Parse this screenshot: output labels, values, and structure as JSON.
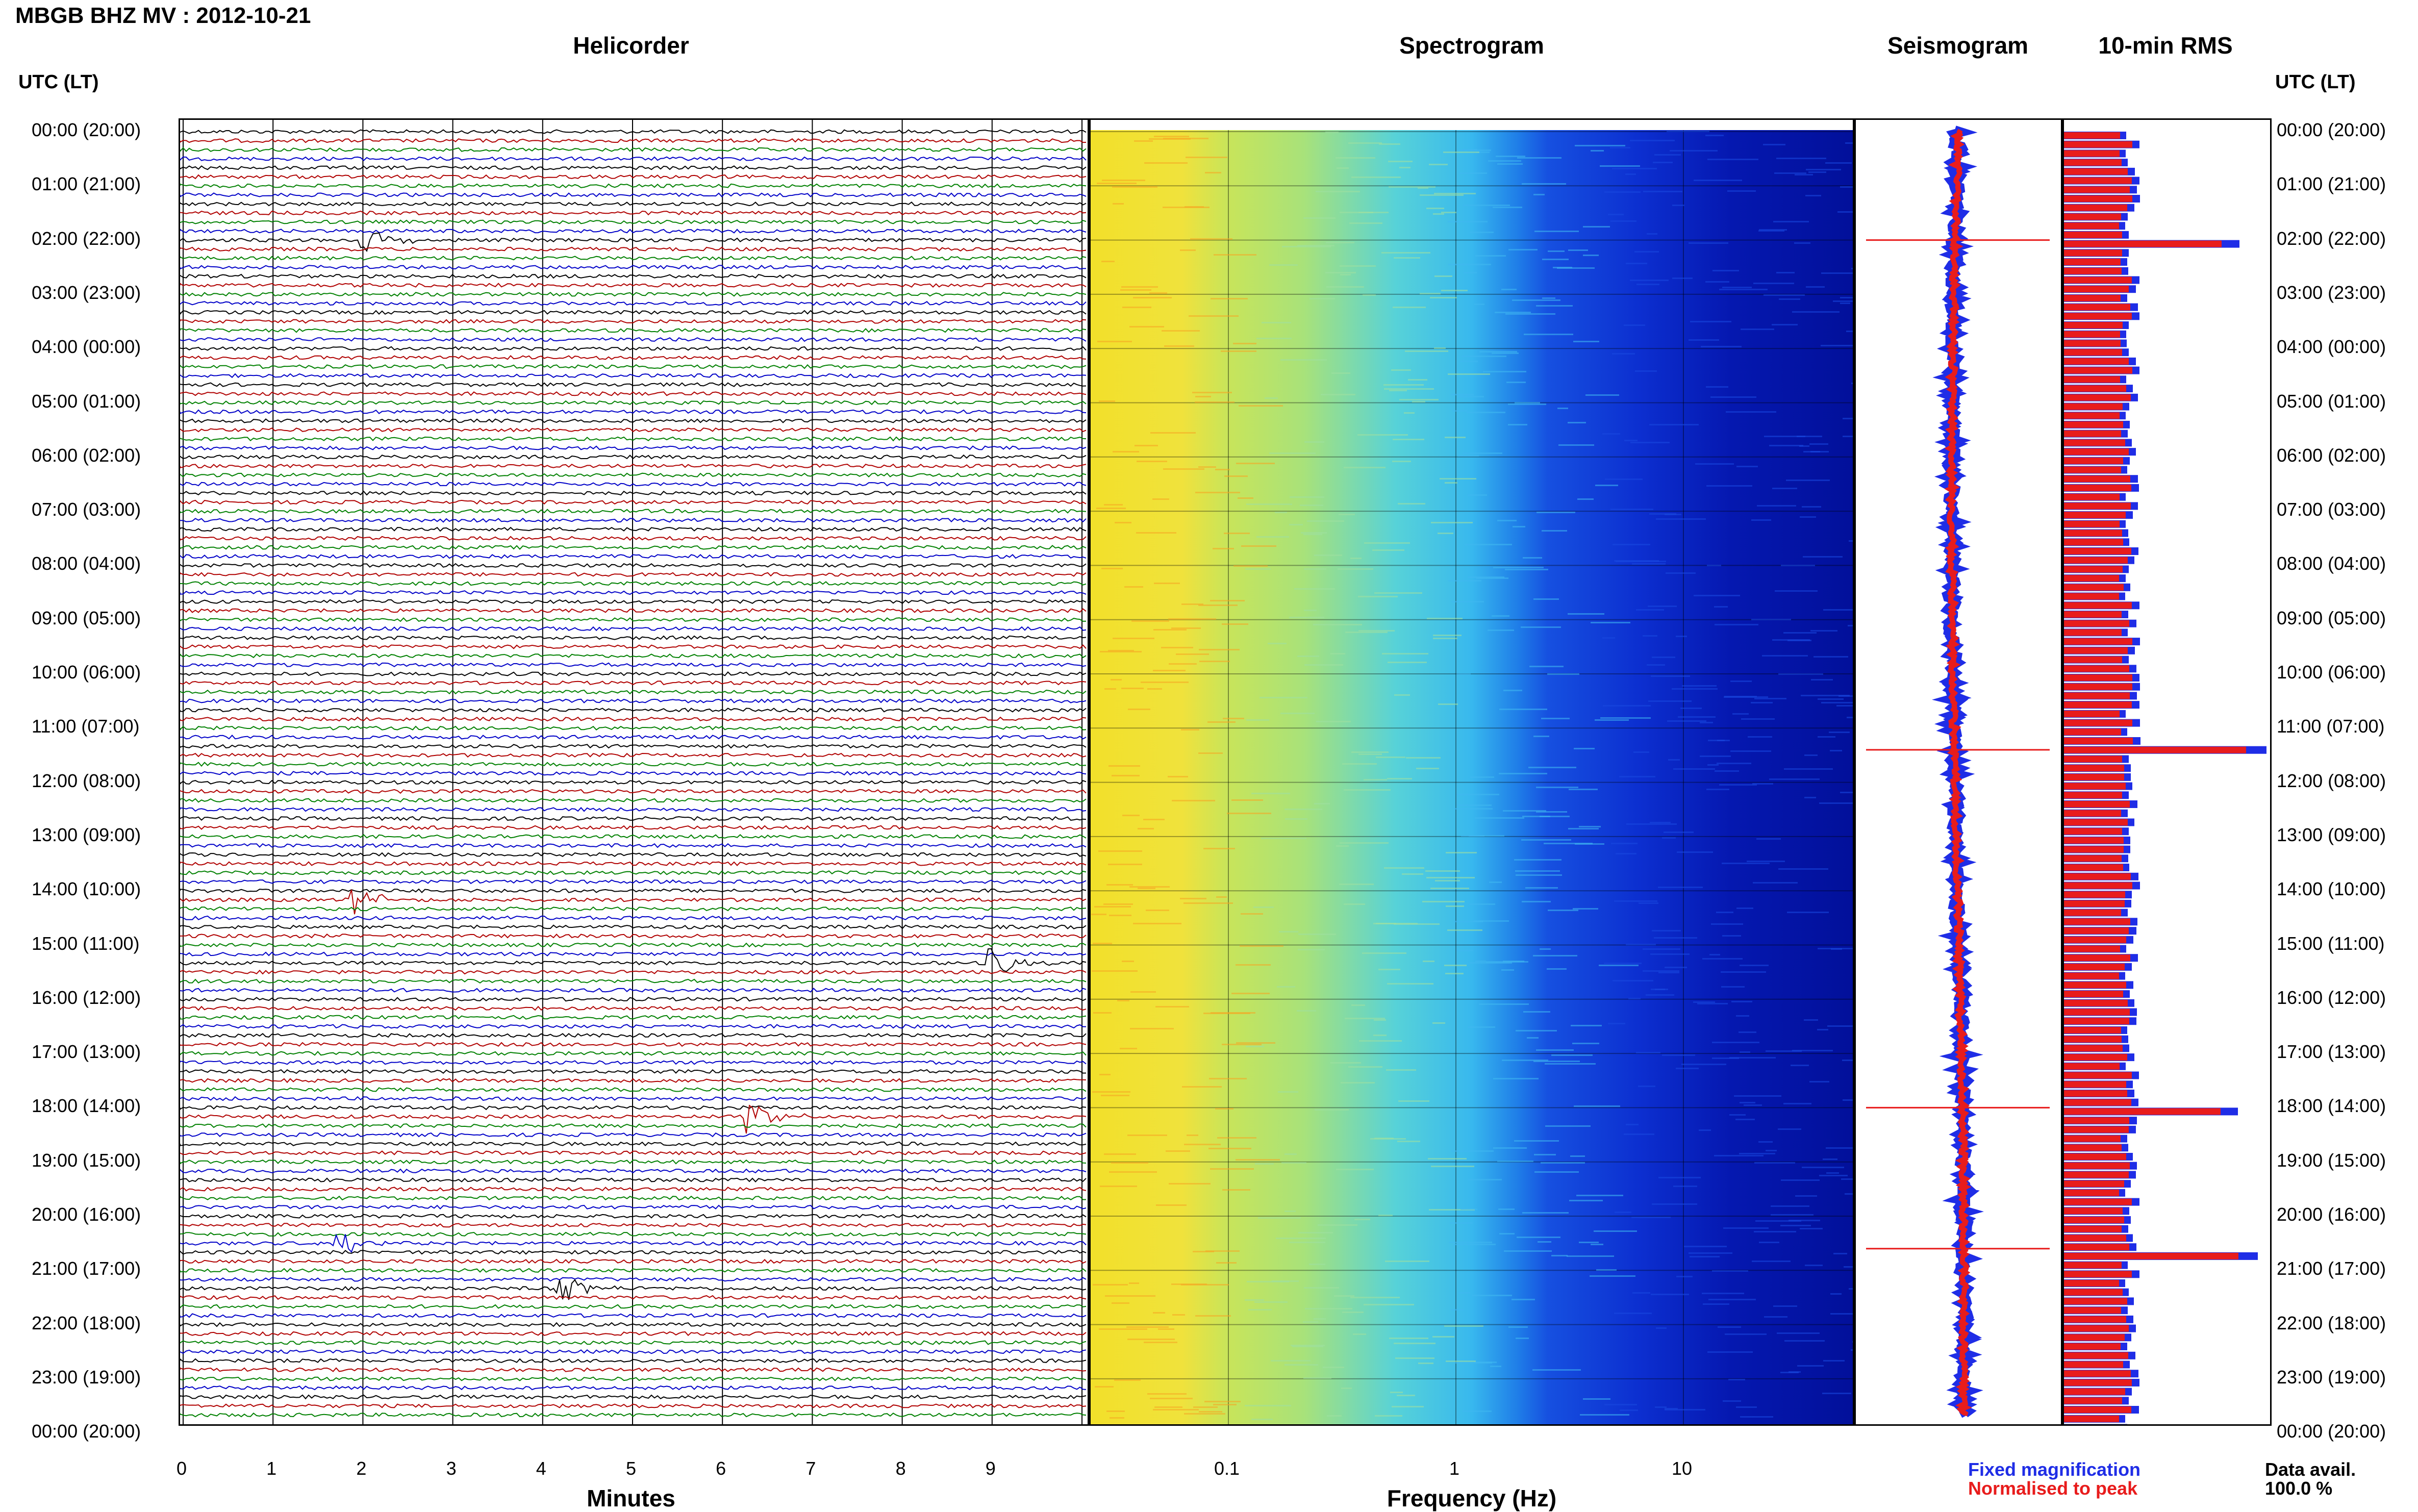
{
  "header": {
    "title": "MBGB BHZ MV : 2012-10-21"
  },
  "panels": {
    "helicorder": {
      "title": "Helicorder",
      "xlabel": "Minutes",
      "xticks": [
        "0",
        "1",
        "2",
        "3",
        "4",
        "5",
        "6",
        "7",
        "8",
        "9"
      ]
    },
    "spectrogram": {
      "title": "Spectrogram",
      "xlabel": "Frequency (Hz)",
      "xticks": [
        "0.1",
        "1",
        "10"
      ]
    },
    "seismogram": {
      "title": "Seismogram"
    },
    "rms": {
      "title": "10-min RMS"
    }
  },
  "axis": {
    "left_header": "UTC (LT)",
    "right_header": "UTC (LT)",
    "hours": [
      "00:00 (20:00)",
      "01:00 (21:00)",
      "02:00 (22:00)",
      "03:00 (23:00)",
      "04:00 (00:00)",
      "05:00 (01:00)",
      "06:00 (02:00)",
      "07:00 (03:00)",
      "08:00 (04:00)",
      "09:00 (05:00)",
      "10:00 (06:00)",
      "11:00 (07:00)",
      "12:00 (08:00)",
      "13:00 (09:00)",
      "14:00 (10:00)",
      "15:00 (11:00)",
      "16:00 (12:00)",
      "17:00 (13:00)",
      "18:00 (14:00)",
      "19:00 (15:00)",
      "20:00 (16:00)",
      "21:00 (17:00)",
      "22:00 (18:00)",
      "23:00 (19:00)",
      "00:00 (20:00)"
    ]
  },
  "legend": {
    "fixed": "Fixed magnification",
    "normalised": "Normalised to peak",
    "avail_label": "Data avail.",
    "avail_value": "100.0 %"
  },
  "colors": {
    "trace_cycle": [
      "#000000",
      "#b00000",
      "#008000",
      "#0000c8"
    ],
    "fixed_magnification": "#1f2de6",
    "normalised_to_peak": "#e81c1c"
  },
  "events": {
    "rms_spikes_hour": [
      2.0,
      11.4,
      18.0,
      20.6
    ],
    "helicorder_events": [
      {
        "hour": 2.0,
        "minute": 2.0
      },
      {
        "hour": 14.2,
        "minute": 1.9
      },
      {
        "hour": 15.3,
        "minute": 9.0
      },
      {
        "hour": 18.1,
        "minute": 6.3
      },
      {
        "hour": 20.5,
        "minute": 1.7
      },
      {
        "hour": 21.3,
        "minute": 4.2
      }
    ]
  }
}
